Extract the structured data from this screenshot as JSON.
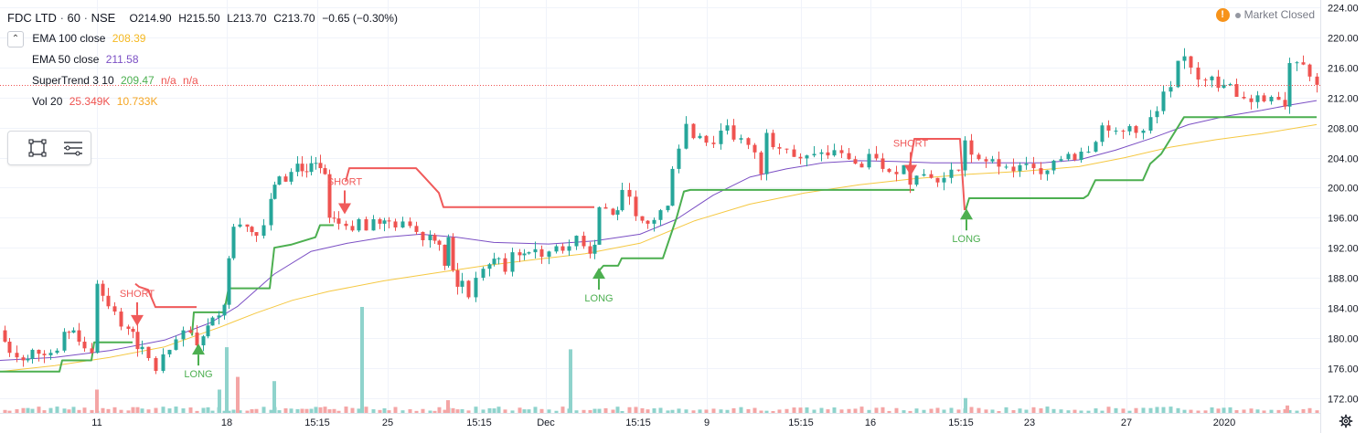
{
  "header": {
    "symbol": "FDC LTD",
    "interval": "60",
    "exchange": "NSE",
    "open": "O214.90",
    "high": "H215.50",
    "low": "L213.70",
    "close": "C213.70",
    "change": "−0.65 (−0.30%)"
  },
  "indicators": [
    {
      "label": "EMA 100 close",
      "values": [
        "208.39"
      ],
      "color": "#f5b820"
    },
    {
      "label": "EMA 50 close",
      "values": [
        "211.58"
      ],
      "color": "#7b4fc4"
    },
    {
      "label": "SuperTrend 3 10",
      "values": [
        "209.47",
        "n/a",
        "n/a"
      ],
      "colors": [
        "#4caf50",
        "#ef5350",
        "#ef5350"
      ]
    },
    {
      "label": "Vol 20",
      "values": [
        "25.349K",
        "10.733K"
      ],
      "colors": [
        "#ef5350",
        "#f5a623"
      ]
    }
  ],
  "status": {
    "warning_icon": "!",
    "label": "Market Closed"
  },
  "colors": {
    "up": "#26a69a",
    "down": "#ef5350",
    "ema100": "#f5c842",
    "ema50": "#7b4fc4",
    "supertrend_up": "#4caf50",
    "supertrend_down": "#f05a5a",
    "volume_up": "#8fd3cc",
    "volume_down": "#f4a5a5",
    "last_price": "#ef5350"
  },
  "chart_data": {
    "type": "candlestick",
    "x_ticks": [
      "11",
      "18",
      "15:15",
      "25",
      "15:15",
      "Dec",
      "15:15",
      "9",
      "15:15",
      "16",
      "15:15",
      "23",
      "27",
      "2020"
    ],
    "y_ticks": [
      "224.00",
      "220.00",
      "216.00",
      "212.00",
      "208.00",
      "204.00",
      "200.00",
      "196.00",
      "192.00",
      "188.00",
      "184.00",
      "180.00",
      "176.00",
      "172.00"
    ],
    "ylim": [
      170,
      225
    ],
    "last_price": "213.70",
    "last_price_value": 213.7,
    "close_series": [
      [
        0,
        181
      ],
      [
        10,
        178
      ],
      [
        18,
        177.4
      ],
      [
        25,
        177
      ],
      [
        35,
        178.4
      ],
      [
        55,
        178
      ],
      [
        62,
        178.3
      ],
      [
        70,
        180.8
      ],
      [
        80,
        181
      ],
      [
        92,
        178.6
      ],
      [
        100,
        178
      ],
      [
        106,
        187.2
      ],
      [
        112,
        185.6
      ],
      [
        118,
        184.2
      ],
      [
        125,
        183.5
      ],
      [
        132,
        181.5
      ],
      [
        140,
        181.2
      ],
      [
        145,
        180.8
      ],
      [
        150,
        178.5
      ],
      [
        155,
        178.8
      ],
      [
        162,
        177.3
      ],
      [
        170,
        175.6
      ],
      [
        178,
        177.8
      ],
      [
        185,
        178.4
      ],
      [
        192,
        179.8
      ],
      [
        200,
        181
      ],
      [
        208,
        180.7
      ],
      [
        215,
        179
      ],
      [
        222,
        180.2
      ],
      [
        232,
        182.7
      ],
      [
        245,
        184.4
      ],
      [
        250,
        190.6
      ],
      [
        255,
        194.8
      ],
      [
        262,
        195.1
      ],
      [
        270,
        194.8
      ],
      [
        280,
        193.6
      ],
      [
        288,
        195
      ],
      [
        296,
        198.5
      ],
      [
        300,
        200.4
      ],
      [
        305,
        201.5
      ],
      [
        312,
        200.8
      ],
      [
        318,
        202.1
      ],
      [
        325,
        203.2
      ],
      [
        335,
        202.1
      ],
      [
        345,
        203.3
      ],
      [
        355,
        201.8
      ],
      [
        360,
        196
      ],
      [
        370,
        195.2
      ],
      [
        378,
        194.9
      ],
      [
        385,
        194.3
      ],
      [
        392,
        195.8
      ],
      [
        400,
        194.3
      ],
      [
        408,
        195.8
      ],
      [
        415,
        195.2
      ],
      [
        425,
        195.5
      ],
      [
        432,
        194.7
      ],
      [
        440,
        195.5
      ],
      [
        448,
        194.9
      ],
      [
        455,
        194.1
      ],
      [
        462,
        193
      ],
      [
        470,
        193.7
      ],
      [
        480,
        192.4
      ],
      [
        486,
        189.6
      ],
      [
        490,
        193.4
      ],
      [
        495,
        189
      ],
      [
        500,
        186.8
      ],
      [
        505,
        187.6
      ],
      [
        512,
        185.4
      ],
      [
        520,
        188
      ],
      [
        528,
        189.2
      ],
      [
        535,
        189.8
      ],
      [
        545,
        190.6
      ],
      [
        552,
        188.8
      ],
      [
        560,
        191.4
      ],
      [
        568,
        191
      ],
      [
        578,
        191.4
      ],
      [
        585,
        191.8
      ],
      [
        592,
        190.8
      ],
      [
        600,
        191.5
      ],
      [
        608,
        192.2
      ],
      [
        615,
        191.6
      ],
      [
        622,
        192.2
      ],
      [
        630,
        193.6
      ],
      [
        638,
        192.2
      ],
      [
        645,
        191.2
      ],
      [
        650,
        192.4
      ],
      [
        655,
        197.4
      ],
      [
        662,
        197.2
      ],
      [
        670,
        196.4
      ],
      [
        675,
        197
      ],
      [
        680,
        199.7
      ],
      [
        688,
        198.8
      ],
      [
        695,
        196.2
      ],
      [
        702,
        195.6
      ],
      [
        708,
        195.2
      ],
      [
        715,
        195.7
      ],
      [
        722,
        197
      ],
      [
        730,
        197.6
      ],
      [
        735,
        202.5
      ],
      [
        742,
        205.2
      ],
      [
        750,
        208.5
      ],
      [
        758,
        206.6
      ],
      [
        765,
        206.9
      ],
      [
        772,
        206
      ],
      [
        780,
        205.8
      ],
      [
        788,
        207.6
      ],
      [
        795,
        208.3
      ],
      [
        802,
        206.4
      ],
      [
        810,
        206.6
      ],
      [
        818,
        205.7
      ],
      [
        825,
        204.7
      ],
      [
        832,
        201.8
      ],
      [
        838,
        207.3
      ],
      [
        845,
        205.4
      ],
      [
        852,
        205.2
      ],
      [
        860,
        205.1
      ],
      [
        868,
        204.1
      ],
      [
        875,
        203.9
      ],
      [
        882,
        204.3
      ],
      [
        890,
        204.5
      ],
      [
        898,
        204.7
      ],
      [
        905,
        204.3
      ],
      [
        912,
        205
      ],
      [
        920,
        204.6
      ],
      [
        928,
        203.8
      ],
      [
        935,
        203.2
      ],
      [
        942,
        202.7
      ],
      [
        950,
        204.5
      ],
      [
        958,
        203.9
      ],
      [
        965,
        202.5
      ],
      [
        972,
        202.1
      ],
      [
        980,
        201.8
      ],
      [
        988,
        203
      ],
      [
        995,
        200.4
      ],
      [
        1002,
        201.6
      ],
      [
        1010,
        201.8
      ],
      [
        1018,
        201.3
      ],
      [
        1025,
        200.7
      ],
      [
        1032,
        201.3
      ],
      [
        1040,
        202.4
      ],
      [
        1048,
        202.3
      ],
      [
        1055,
        206.3
      ],
      [
        1062,
        204.4
      ],
      [
        1070,
        203.8
      ],
      [
        1078,
        203.5
      ],
      [
        1085,
        203.8
      ],
      [
        1092,
        202.8
      ],
      [
        1100,
        202.8
      ],
      [
        1108,
        202.2
      ],
      [
        1115,
        203
      ],
      [
        1122,
        203.2
      ],
      [
        1130,
        202.6
      ],
      [
        1138,
        201.8
      ],
      [
        1145,
        202.3
      ],
      [
        1152,
        203.6
      ],
      [
        1160,
        203.8
      ],
      [
        1168,
        204.5
      ],
      [
        1175,
        203.7
      ],
      [
        1182,
        204.8
      ],
      [
        1190,
        204.8
      ],
      [
        1198,
        206.1
      ],
      [
        1205,
        208.3
      ],
      [
        1212,
        207.6
      ],
      [
        1220,
        207.6
      ],
      [
        1228,
        207.5
      ],
      [
        1235,
        208.2
      ],
      [
        1242,
        207.3
      ],
      [
        1250,
        207.6
      ],
      [
        1258,
        209.4
      ],
      [
        1265,
        210.2
      ],
      [
        1272,
        212.8
      ],
      [
        1280,
        213.4
      ],
      [
        1288,
        216.9
      ],
      [
        1295,
        217.5
      ],
      [
        1302,
        216
      ],
      [
        1310,
        214.4
      ],
      [
        1318,
        214.3
      ],
      [
        1325,
        214.8
      ],
      [
        1332,
        213.3
      ],
      [
        1338,
        213.7
      ],
      [
        1345,
        213.8
      ],
      [
        1352,
        212.1
      ],
      [
        1360,
        211.9
      ],
      [
        1368,
        211.4
      ],
      [
        1375,
        212.3
      ],
      [
        1382,
        211.5
      ],
      [
        1390,
        212.1
      ],
      [
        1398,
        211.7
      ],
      [
        1405,
        210.8
      ],
      [
        1410,
        216.6
      ],
      [
        1418,
        216.7
      ],
      [
        1425,
        216.4
      ],
      [
        1432,
        214.8
      ],
      [
        1440,
        213.7
      ]
    ],
    "ema100": [
      [
        0,
        175.5
      ],
      [
        60,
        176.3
      ],
      [
        120,
        177.4
      ],
      [
        180,
        178.8
      ],
      [
        240,
        181.4
      ],
      [
        280,
        183.3
      ],
      [
        320,
        185
      ],
      [
        360,
        186.2
      ],
      [
        420,
        187.6
      ],
      [
        480,
        188.7
      ],
      [
        530,
        189.6
      ],
      [
        590,
        190.5
      ],
      [
        640,
        191.2
      ],
      [
        700,
        192.6
      ],
      [
        760,
        195.6
      ],
      [
        820,
        197.8
      ],
      [
        880,
        199.3
      ],
      [
        940,
        200.4
      ],
      [
        1000,
        201.2
      ],
      [
        1060,
        201.8
      ],
      [
        1120,
        202.2
      ],
      [
        1180,
        202.8
      ],
      [
        1230,
        204
      ],
      [
        1280,
        205.4
      ],
      [
        1330,
        206.4
      ],
      [
        1380,
        207.2
      ],
      [
        1440,
        208.4
      ]
    ],
    "ema50": [
      [
        0,
        177
      ],
      [
        60,
        177.4
      ],
      [
        120,
        178.3
      ],
      [
        180,
        179.7
      ],
      [
        230,
        182
      ],
      [
        260,
        184.2
      ],
      [
        300,
        188.5
      ],
      [
        340,
        191.5
      ],
      [
        380,
        192.6
      ],
      [
        420,
        193.4
      ],
      [
        460,
        193.8
      ],
      [
        500,
        193.4
      ],
      [
        540,
        192.7
      ],
      [
        600,
        192.5
      ],
      [
        650,
        192.9
      ],
      [
        700,
        193.8
      ],
      [
        740,
        195.8
      ],
      [
        780,
        199
      ],
      [
        820,
        201.4
      ],
      [
        860,
        202.5
      ],
      [
        900,
        203.3
      ],
      [
        940,
        203.6
      ],
      [
        980,
        203.5
      ],
      [
        1020,
        203.3
      ],
      [
        1060,
        203.3
      ],
      [
        1100,
        203.3
      ],
      [
        1140,
        203.3
      ],
      [
        1180,
        203.7
      ],
      [
        1220,
        205
      ],
      [
        1260,
        206.6
      ],
      [
        1300,
        208.4
      ],
      [
        1340,
        209.5
      ],
      [
        1380,
        210.3
      ],
      [
        1410,
        211
      ],
      [
        1440,
        211.6
      ]
    ],
    "supertrend_up_segments": [
      [
        [
          0,
          175.5
        ],
        [
          65,
          175.5
        ],
        [
          68,
          177
        ],
        [
          100,
          177
        ],
        [
          103,
          179.4
        ],
        [
          145,
          179.4
        ]
      ],
      [
        [
          210,
          180.3
        ],
        [
          212,
          183.4
        ],
        [
          245,
          183.4
        ],
        [
          250,
          186.6
        ],
        [
          295,
          186.6
        ],
        [
          300,
          192
        ],
        [
          318,
          192.4
        ],
        [
          345,
          193.4
        ],
        [
          350,
          195
        ],
        [
          365,
          195
        ]
      ],
      [
        [
          652,
          188.5
        ],
        [
          660,
          189.6
        ],
        [
          676,
          189.6
        ],
        [
          680,
          190.6
        ],
        [
          725,
          190.6
        ],
        [
          740,
          196
        ],
        [
          748,
          199.5
        ],
        [
          755,
          199.7
        ],
        [
          1000,
          199.7
        ]
      ],
      [
        [
          1056,
          197
        ],
        [
          1060,
          198.6
        ],
        [
          1185,
          198.6
        ],
        [
          1190,
          199
        ],
        [
          1198,
          201
        ],
        [
          1250,
          201
        ],
        [
          1258,
          203.2
        ],
        [
          1270,
          204.5
        ],
        [
          1295,
          209.4
        ],
        [
          1440,
          209.4
        ]
      ]
    ],
    "supertrend_down_segments": [
      [
        [
          148,
          187.2
        ],
        [
          152,
          186.8
        ],
        [
          162,
          186.4
        ],
        [
          170,
          184.1
        ],
        [
          215,
          184.1
        ]
      ],
      [
        [
          378,
          200.8
        ],
        [
          382,
          202.6
        ],
        [
          455,
          202.6
        ],
        [
          465,
          201.3
        ],
        [
          480,
          199.3
        ],
        [
          485,
          197.4
        ],
        [
          650,
          197.4
        ]
      ],
      [
        [
          995,
          203
        ],
        [
          1000,
          206.5
        ],
        [
          1050,
          206.5
        ],
        [
          1055,
          197
        ]
      ]
    ],
    "signals": [
      {
        "type": "SHORT",
        "x": 150,
        "y": 182.3
      },
      {
        "type": "LONG",
        "x": 217,
        "y": 178.5
      },
      {
        "type": "SHORT",
        "x": 377,
        "y": 197.2
      },
      {
        "type": "LONG",
        "x": 655,
        "y": 188.6
      },
      {
        "type": "SHORT",
        "x": 996,
        "y": 202.3
      },
      {
        "type": "LONG",
        "x": 1057,
        "y": 196.5
      }
    ],
    "volume_spikes": [
      {
        "x": 106,
        "v": 0.22,
        "up": false
      },
      {
        "x": 240,
        "v": 0.22,
        "up": true
      },
      {
        "x": 248,
        "v": 0.62,
        "up": true
      },
      {
        "x": 260,
        "v": 0.34,
        "up": false
      },
      {
        "x": 300,
        "v": 0.3,
        "up": true
      },
      {
        "x": 396,
        "v": 1.0,
        "up": true
      },
      {
        "x": 490,
        "v": 0.12,
        "up": false
      },
      {
        "x": 624,
        "v": 0.6,
        "up": true
      },
      {
        "x": 1056,
        "v": 0.14,
        "up": true
      },
      {
        "x": 1408,
        "v": 0.07,
        "up": false
      }
    ]
  }
}
